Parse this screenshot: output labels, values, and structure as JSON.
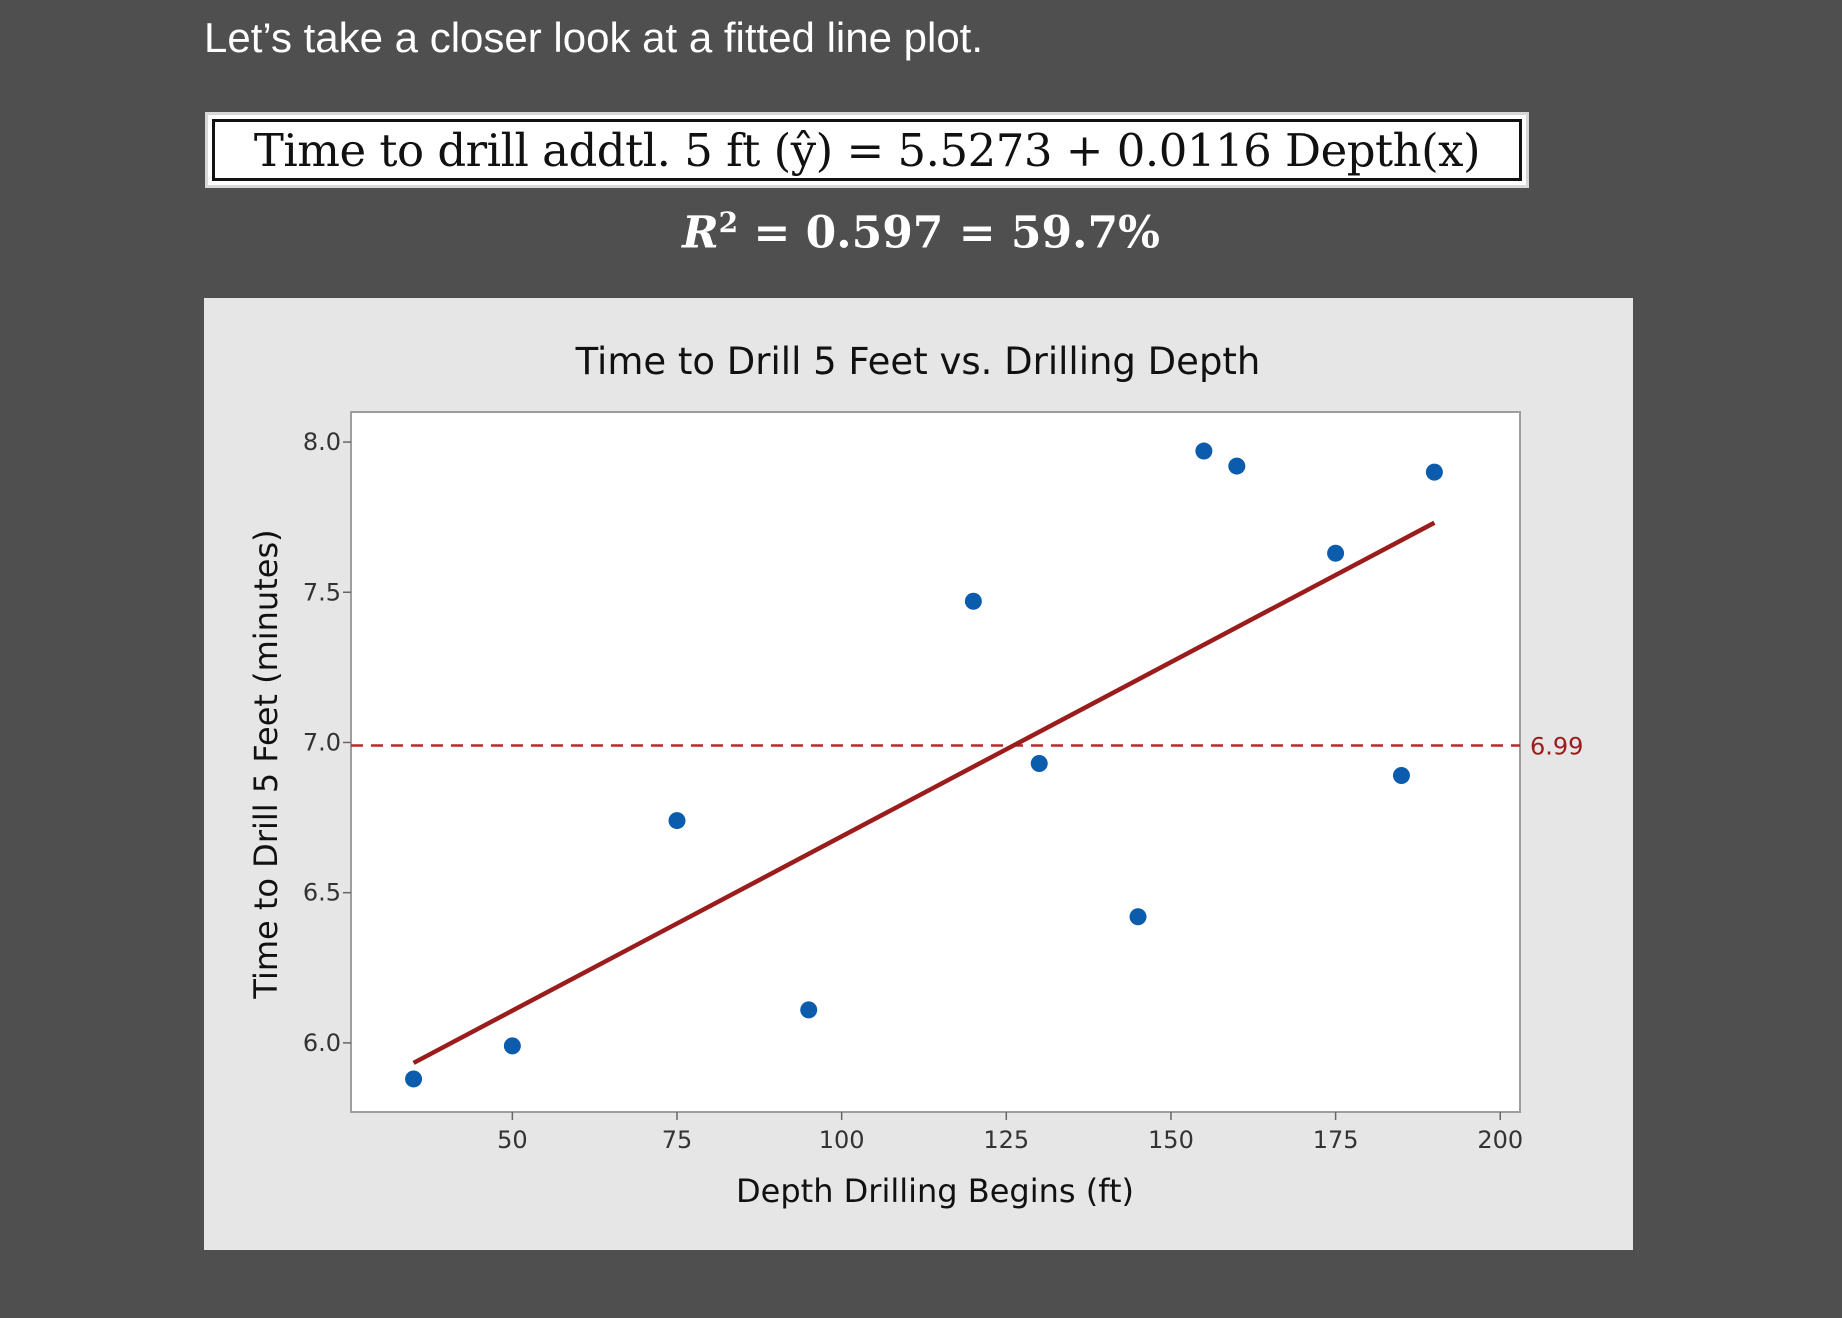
{
  "slide": {
    "heading": "Let’s take a closer look at a fitted line plot.",
    "equation": "Time to drill addtl. 5 ft (ŷ) = 5.5273 + 0.0116 Depth(x)",
    "r_squared_label": "R",
    "r_squared_exponent": "2",
    "r_squared_value": " = 0.597 = 59.7%"
  },
  "chart_data": {
    "type": "scatter",
    "title": "Time to Drill 5 Feet vs. Drilling Depth",
    "xlabel": "Depth Drilling Begins (ft)",
    "ylabel": "Time to Drill 5 Feet (minutes)",
    "xlim": [
      25.5,
      203
    ],
    "ylim": [
      5.77,
      8.1
    ],
    "x_ticks": [
      50,
      75,
      100,
      125,
      150,
      175,
      200
    ],
    "x_tick_labels": [
      "50",
      "75",
      "100",
      "125",
      "150",
      "175",
      "200"
    ],
    "y_ticks": [
      6.0,
      6.5,
      7.0,
      7.5,
      8.0
    ],
    "y_tick_labels": [
      "6.0",
      "6.5",
      "7.0",
      "7.5",
      "8.0"
    ],
    "grid": false,
    "series": [
      {
        "kind": "points",
        "color": "#0b5cad",
        "x": [
          35,
          50,
          75,
          95,
          120,
          130,
          145,
          155,
          160,
          175,
          185,
          190
        ],
        "y": [
          5.88,
          5.99,
          6.74,
          6.11,
          7.47,
          6.93,
          6.42,
          7.97,
          7.92,
          7.63,
          6.89,
          7.9
        ]
      },
      {
        "kind": "fitted-line",
        "color": "#9b1c1c",
        "intercept": 5.5273,
        "slope": 0.0116,
        "x_range": [
          35,
          190
        ]
      }
    ],
    "reference_line": {
      "y": 6.99,
      "label": "6.99",
      "style": "dashed",
      "color": "#c0262b"
    }
  }
}
